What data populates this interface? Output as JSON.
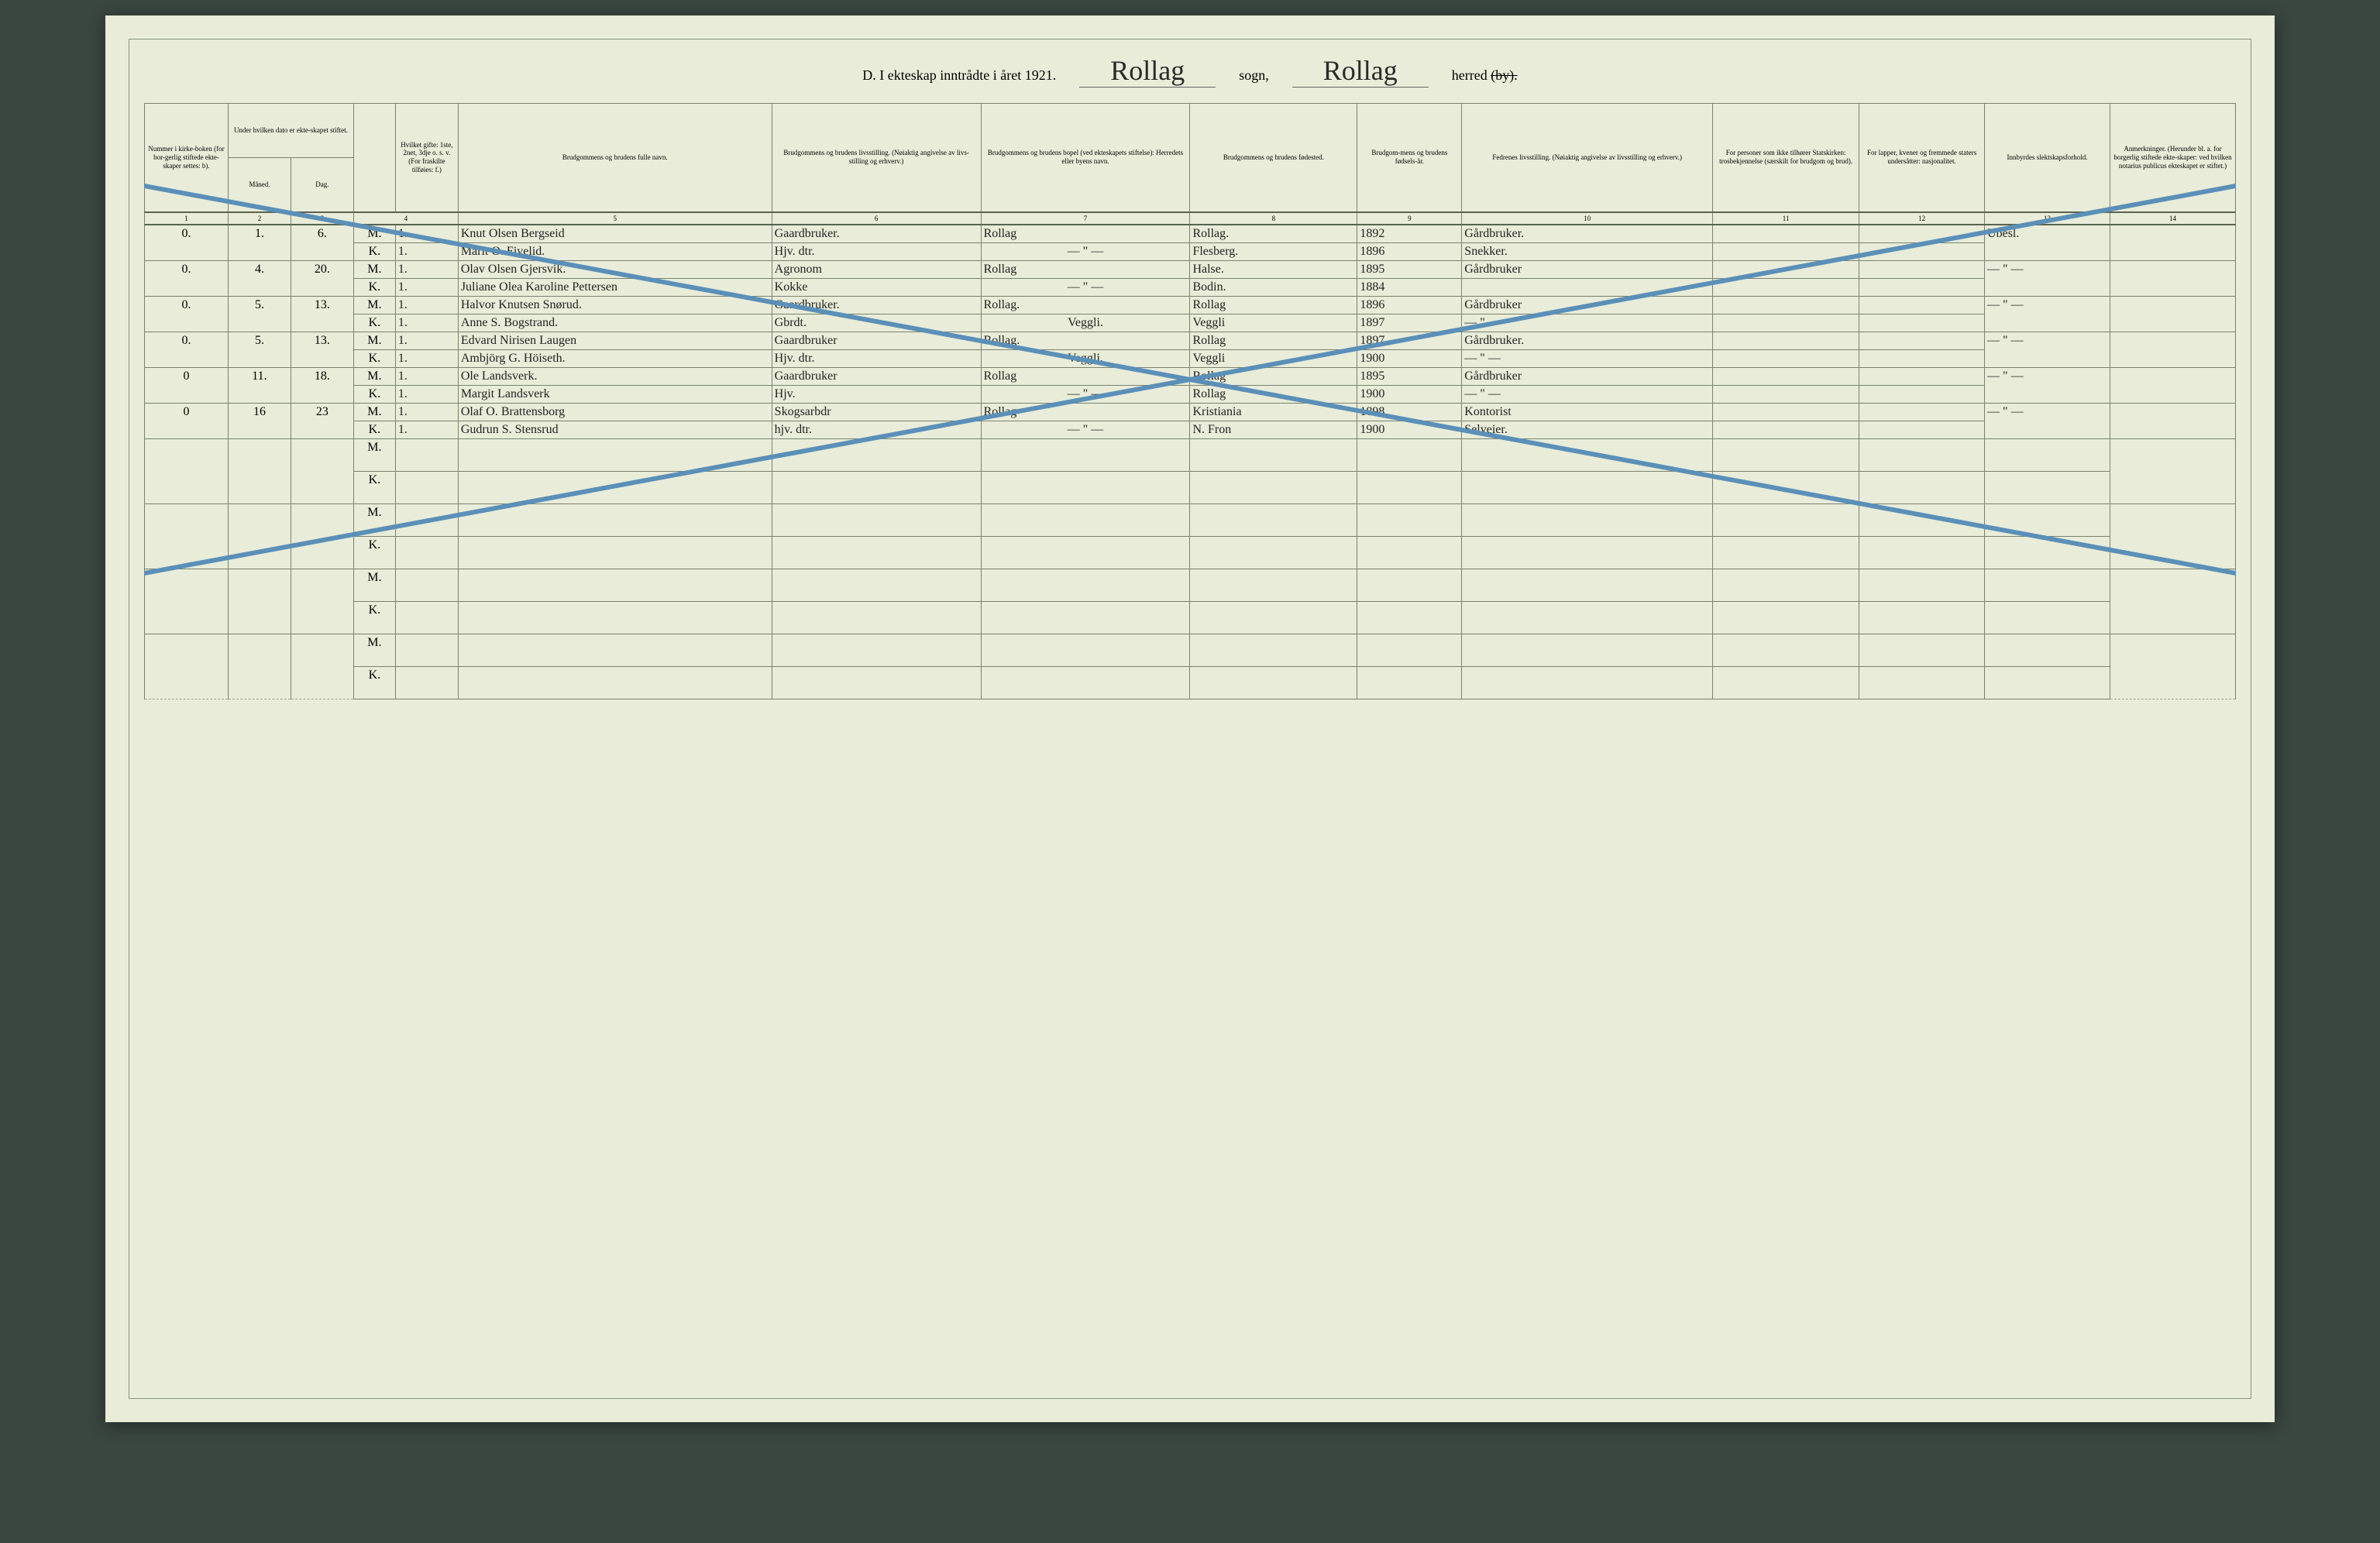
{
  "header": {
    "title_prefix": "D.  I ekteskap inntrådte i året 192",
    "year_suffix": "1.",
    "sogn_script": "Rollag",
    "sogn_label": "sogn,",
    "herred_script": "Rollag",
    "herred_label": "herred",
    "herred_strike": "(by)."
  },
  "columns": {
    "headers": [
      "Nummer i kirke-boken (for bor-gerlig stiftede ekte-skaper settes: b).",
      "Under hvilken dato er ekte-skapet stiftet.",
      "",
      "Hvilket gifte: 1ste, 2net, 3dje o. s. v. (For fraskilte tilføies: f.)",
      "Brudgommens og brudens fulle navn.",
      "Brudgommens og brudens livsstilling. (Nøiaktig angivelse av livs-stilling og erhverv.)",
      "Brudgommens og brudens bopel (ved ekteskapets stiftelse): Herredets eller byens navn.",
      "Brudgommens og brudens fødested.",
      "Brudgom-mens og brudens fødsels-år.",
      "Fedrenes livsstilling. (Nøiaktig angivelse av livsstilling og erhverv.)",
      "For personer som ikke tilhører Statskirken: trosbekjennelse (særskilt for brudgom og brud).",
      "For lapper, kvener og fremmede staters undersåtter: nasjonalitet.",
      "Innbyrdes slektskapsforhold.",
      "Anmerkninger. (Herunder bl. a. for borgerlig stiftede ekte-skaper: ved hvilken notarius publicus ekteskapet er stiftet.)"
    ],
    "sub2": [
      "Måned.",
      "Dag."
    ],
    "numbers": [
      "1",
      "2",
      "3",
      "4",
      "5",
      "6",
      "7",
      "8",
      "9",
      "10",
      "11",
      "12",
      "13",
      "14"
    ]
  },
  "rows": [
    {
      "num": "0.",
      "maaned": "1.",
      "dag": "6.",
      "m": {
        "gifte": "1.",
        "navn": "Knut Olsen Bergseid",
        "livsstilling": "Gaardbruker.",
        "bopel": "Rollag",
        "fodested": "Rollag.",
        "aar": "1892",
        "fedrene": "Gårdbruker."
      },
      "k": {
        "gifte": "1.",
        "navn": "Marit O. Fivelid.",
        "livsstilling": "Hjv. dtr.",
        "bopel": "— \" —",
        "fodested": "Flesberg.",
        "aar": "1896",
        "fedrene": "Snekker."
      },
      "col13": "Ubesl."
    },
    {
      "num": "0.",
      "maaned": "4.",
      "dag": "20.",
      "m": {
        "gifte": "1.",
        "navn": "Olav Olsen Gjersvik.",
        "livsstilling": "Agronom",
        "bopel": "Rollag",
        "fodested": "Halse.",
        "aar": "1895",
        "fedrene": "Gårdbruker"
      },
      "k": {
        "gifte": "1.",
        "navn": "Juliane Olea Karoline Pettersen",
        "livsstilling": "Kokke",
        "bopel": "— \" —",
        "fodested": "Bodin.",
        "aar": "1884",
        "fedrene": ""
      },
      "col13": "— \" —"
    },
    {
      "num": "0.",
      "maaned": "5.",
      "dag": "13.",
      "m": {
        "gifte": "1.",
        "navn": "Halvor Knutsen Snørud.",
        "livsstilling": "Gaardbruker.",
        "bopel": "Rollag.",
        "fodested": "Rollag",
        "aar": "1896",
        "fedrene": "Gårdbruker"
      },
      "k": {
        "gifte": "1.",
        "navn": "Anne S. Bogstrand.",
        "livsstilling": "Gbrdt.",
        "bopel": "Veggli.",
        "fodested": "Veggli",
        "aar": "1897",
        "fedrene": "— \" —"
      },
      "col13": "— \" —"
    },
    {
      "num": "0.",
      "maaned": "5.",
      "dag": "13.",
      "m": {
        "gifte": "1.",
        "navn": "Edvard Nirisen Laugen",
        "livsstilling": "Gaardbruker",
        "bopel": "Rollag.",
        "fodested": "Rollag",
        "aar": "1897",
        "fedrene": "Gårdbruker."
      },
      "k": {
        "gifte": "1.",
        "navn": "Ambjörg G. Höiseth.",
        "livsstilling": "Hjv. dtr.",
        "bopel": "Veggli.",
        "fodested": "Veggli",
        "aar": "1900",
        "fedrene": "— \" —"
      },
      "col13": "— \" —"
    },
    {
      "num": "0",
      "maaned": "11.",
      "dag": "18.",
      "m": {
        "gifte": "1.",
        "navn": "Ole Landsverk.",
        "livsstilling": "Gaardbruker",
        "bopel": "Rollag",
        "fodested": "Rollag",
        "aar": "1895",
        "fedrene": "Gårdbruker"
      },
      "k": {
        "gifte": "1.",
        "navn": "Margit Landsverk",
        "livsstilling": "Hjv.",
        "bopel": "— \" —",
        "fodested": "Rollag",
        "aar": "1900",
        "fedrene": "— \" —"
      },
      "col13": "— \" —"
    },
    {
      "num": "0",
      "maaned": "16",
      "dag": "23",
      "m": {
        "gifte": "1.",
        "navn": "Olaf O. Brattensborg",
        "livsstilling": "Skogsarbdr",
        "bopel": "Rollag",
        "fodested": "Kristiania",
        "aar": "1898",
        "fedrene": "Kontorist"
      },
      "k": {
        "gifte": "1.",
        "navn": "Gudrun S. Stensrud",
        "livsstilling": "hjv. dtr.",
        "bopel": "— \" —",
        "fodested": "N. Fron",
        "aar": "1900",
        "fedrene": "Selveier."
      },
      "col13": "— \" —"
    }
  ],
  "mk_labels": {
    "m": "M.",
    "k": "K."
  },
  "colors": {
    "paper": "#e8ecd8",
    "rule": "#7a8270",
    "ink": "#222222",
    "blue_pencil": "#5a8fb8"
  },
  "cross": {
    "stroke": "#5a8fb8",
    "width": 6
  },
  "col_widths_pct": [
    4,
    3,
    3,
    2,
    3,
    15,
    10,
    10,
    8,
    5,
    12,
    7,
    6,
    6,
    6
  ]
}
